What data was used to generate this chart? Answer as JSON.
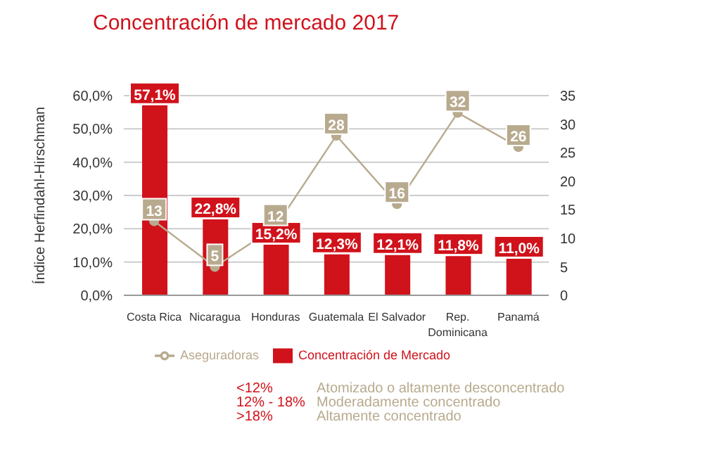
{
  "chart_data": {
    "type": "bar",
    "title": "Concentración de mercado 2017",
    "categories": [
      "Costa Rica",
      "Nicaragua",
      "Honduras",
      "Guatemala",
      "El Salvador",
      "Rep. Dominicana",
      "Panamá"
    ],
    "series": [
      {
        "name": "Concentración de Mercado",
        "color": "#d0121b",
        "values": [
          57.1,
          22.8,
          15.2,
          12.3,
          12.1,
          11.8,
          11.0
        ],
        "value_labels": [
          "57,1%",
          "22,8%",
          "15,2%",
          "12,3%",
          "12,1%",
          "11,8%",
          "11,0%"
        ]
      },
      {
        "name": "Aseguradoras",
        "type": "line",
        "axis": "y2",
        "color": "#b8aa8e",
        "values": [
          13,
          5,
          12,
          28,
          16,
          32,
          26
        ]
      }
    ],
    "data_labels": true,
    "ylabel": "Índice Herfindahl-Hirschman",
    "ylim": [
      0,
      60
    ],
    "yticks": [
      {
        "value": 0,
        "label": "0,0%"
      },
      {
        "value": 10,
        "label": "10,0%"
      },
      {
        "value": 20,
        "label": "20,0%"
      },
      {
        "value": 30,
        "label": "30,0%"
      },
      {
        "value": 40,
        "label": "40,0%"
      },
      {
        "value": 50,
        "label": "50,0%"
      },
      {
        "value": 60,
        "label": "60,0%"
      }
    ],
    "y2lim": [
      0,
      35
    ],
    "y2ticks": [
      0,
      5,
      10,
      15,
      20,
      25,
      30,
      35
    ],
    "grid": "y",
    "legend": "bottom",
    "marker": "circle",
    "line_style": "solid",
    "annotations": [
      "<12%",
      "Atomizado o altamente desconcentrado",
      "12% - 18%",
      "Moderadamente concentrado",
      ">18%",
      "Altamente concentrado"
    ]
  }
}
